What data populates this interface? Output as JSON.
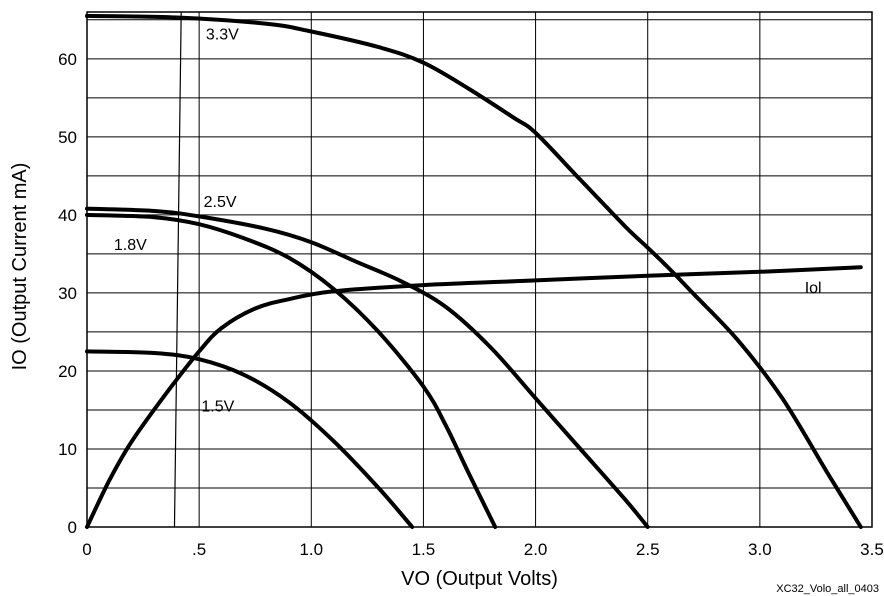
{
  "chart_data": {
    "type": "line",
    "title": "",
    "xlabel": "VO (Output Volts)",
    "ylabel": "IO (Output Current mA)",
    "xlim": [
      0,
      3.5
    ],
    "ylim": [
      0,
      66
    ],
    "x_ticks": [
      0,
      0.5,
      1.0,
      1.5,
      2.0,
      2.5,
      3.0,
      3.5
    ],
    "x_tick_labels": [
      "0",
      ".5",
      "1.0",
      "1.5",
      "2.0",
      "2.5",
      "3.0",
      "3.5"
    ],
    "y_ticks": [
      0,
      10,
      20,
      30,
      40,
      50,
      60
    ],
    "y_tick_labels": [
      "0",
      "10",
      "20",
      "30",
      "40",
      "50",
      "60"
    ],
    "grid": true,
    "footnote": "XC32_Volo_all_0403",
    "series": [
      {
        "name": "3.3V",
        "points": [
          [
            0,
            65.5
          ],
          [
            0.4,
            65.3
          ],
          [
            0.8,
            64.5
          ],
          [
            1.0,
            63.5
          ],
          [
            1.3,
            61.5
          ],
          [
            1.5,
            59.5
          ],
          [
            1.7,
            56.2
          ],
          [
            1.9,
            52.5
          ],
          [
            2.0,
            50.5
          ],
          [
            2.2,
            44.5
          ],
          [
            2.4,
            38.5
          ],
          [
            2.5,
            35.8
          ],
          [
            2.6,
            33
          ],
          [
            2.7,
            30
          ],
          [
            2.9,
            24
          ],
          [
            3.1,
            16.5
          ],
          [
            3.3,
            7
          ],
          [
            3.45,
            0
          ]
        ]
      },
      {
        "name": "2.5V",
        "points": [
          [
            0,
            40.8
          ],
          [
            0.3,
            40.5
          ],
          [
            0.5,
            39.8
          ],
          [
            0.8,
            38.2
          ],
          [
            1.0,
            36.5
          ],
          [
            1.2,
            34
          ],
          [
            1.4,
            31.5
          ],
          [
            1.6,
            28.2
          ],
          [
            1.8,
            23
          ],
          [
            2.0,
            16.5
          ],
          [
            2.2,
            10
          ],
          [
            2.4,
            3.5
          ],
          [
            2.5,
            0
          ]
        ]
      },
      {
        "name": "1.8V",
        "points": [
          [
            0,
            40
          ],
          [
            0.3,
            39.7
          ],
          [
            0.5,
            38.8
          ],
          [
            0.7,
            37
          ],
          [
            0.9,
            34.5
          ],
          [
            1.1,
            30.5
          ],
          [
            1.3,
            25
          ],
          [
            1.5,
            18
          ],
          [
            1.6,
            13
          ],
          [
            1.7,
            7
          ],
          [
            1.82,
            0
          ]
        ]
      },
      {
        "name": "1.5V",
        "points": [
          [
            0,
            22.5
          ],
          [
            0.3,
            22.3
          ],
          [
            0.5,
            21.5
          ],
          [
            0.7,
            19.5
          ],
          [
            0.9,
            16
          ],
          [
            1.1,
            11
          ],
          [
            1.3,
            5
          ],
          [
            1.45,
            0
          ]
        ]
      },
      {
        "name": "Iol",
        "points": [
          [
            0,
            0
          ],
          [
            0.1,
            6
          ],
          [
            0.2,
            11
          ],
          [
            0.35,
            17
          ],
          [
            0.5,
            22.5
          ],
          [
            0.6,
            25.5
          ],
          [
            0.75,
            28
          ],
          [
            0.9,
            29.2
          ],
          [
            1.1,
            30.2
          ],
          [
            1.5,
            31
          ],
          [
            2.0,
            31.6
          ],
          [
            2.5,
            32.2
          ],
          [
            3.0,
            32.7
          ],
          [
            3.45,
            33.3
          ]
        ]
      }
    ],
    "labels": [
      {
        "text": "3.3V",
        "x": 0.53,
        "y": 62.5
      },
      {
        "text": "2.5V",
        "x": 0.52,
        "y": 41.0
      },
      {
        "text": "1.8V",
        "x": 0.12,
        "y": 35.5
      },
      {
        "text": "1.5V",
        "x": 0.51,
        "y": 14.8
      },
      {
        "text": "Iol",
        "x": 3.2,
        "y": 30.0
      }
    ]
  }
}
